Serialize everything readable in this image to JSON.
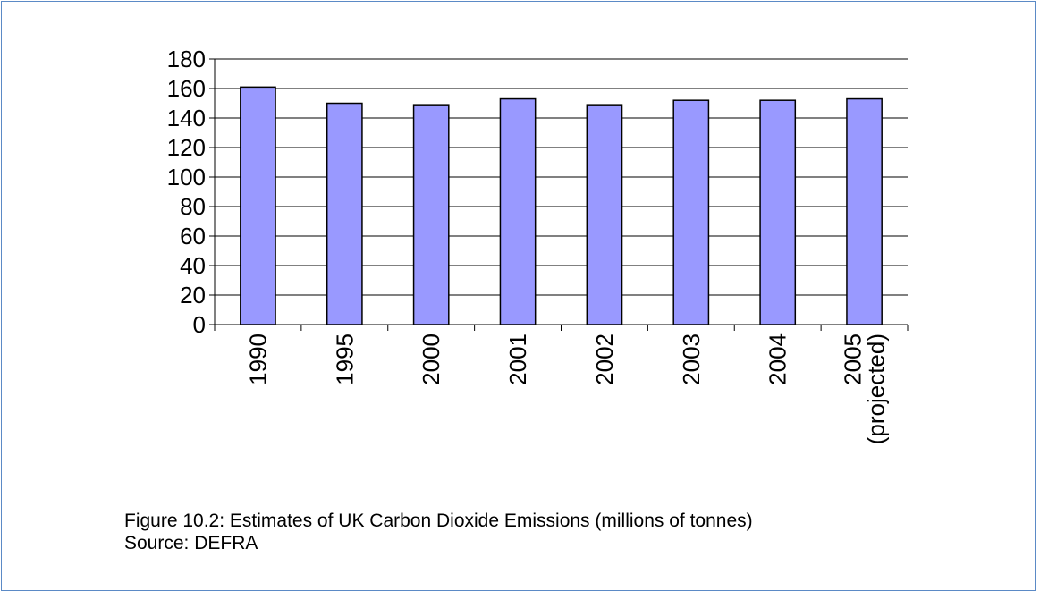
{
  "chart_data": {
    "type": "bar",
    "categories": [
      "1990",
      "1995",
      "2000",
      "2001",
      "2002",
      "2003",
      "2004",
      "2005\n(projected)"
    ],
    "values": [
      161,
      150,
      149,
      153,
      149,
      152,
      152,
      153
    ],
    "title": "",
    "xlabel": "",
    "ylabel": "",
    "ylim": [
      0,
      180
    ],
    "yticks": [
      0,
      20,
      40,
      60,
      80,
      100,
      120,
      140,
      160,
      180
    ],
    "grid": true,
    "legend": "none",
    "bar_color": "#9999ff"
  },
  "caption": {
    "line1": "Figure 10.2: Estimates of UK Carbon Dioxide Emissions (millions of tonnes)",
    "line2": "Source: DEFRA"
  },
  "colors": {
    "border": "#5b8ac6",
    "bar": "#9999ff",
    "axis": "#000000"
  }
}
